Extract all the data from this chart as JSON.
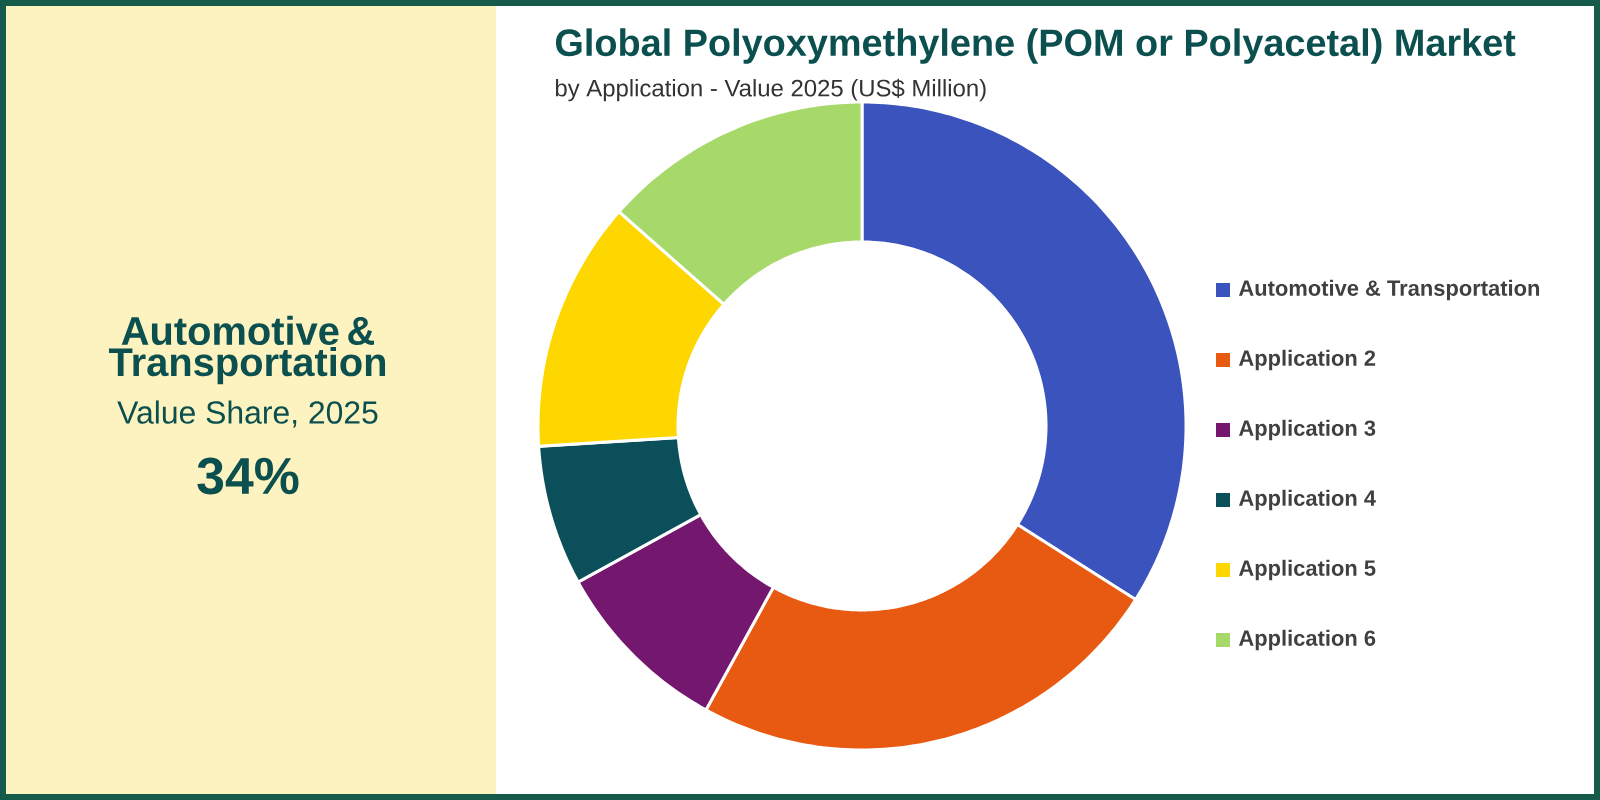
{
  "chart_data": {
    "type": "donut",
    "title": "Global Polyoxymethylene (POM or Polyacetal) Market",
    "subtitle": "by Application - Value 2025 (US$ Million)",
    "categories": [
      "Automotive & Transportation",
      "Application 2",
      "Application 3",
      "Application 4",
      "Application 5",
      "Application 6"
    ],
    "values": [
      34,
      24,
      9,
      7,
      12.5,
      13.5
    ],
    "colors": [
      "#3a53bd",
      "#e85a12",
      "#74176e",
      "#0a4f5a",
      "#fed700",
      "#a6d96a"
    ],
    "legend": "right",
    "annotations": [
      "Automotive & Transportation",
      "Value Share, 2025",
      "34%"
    ]
  }
}
